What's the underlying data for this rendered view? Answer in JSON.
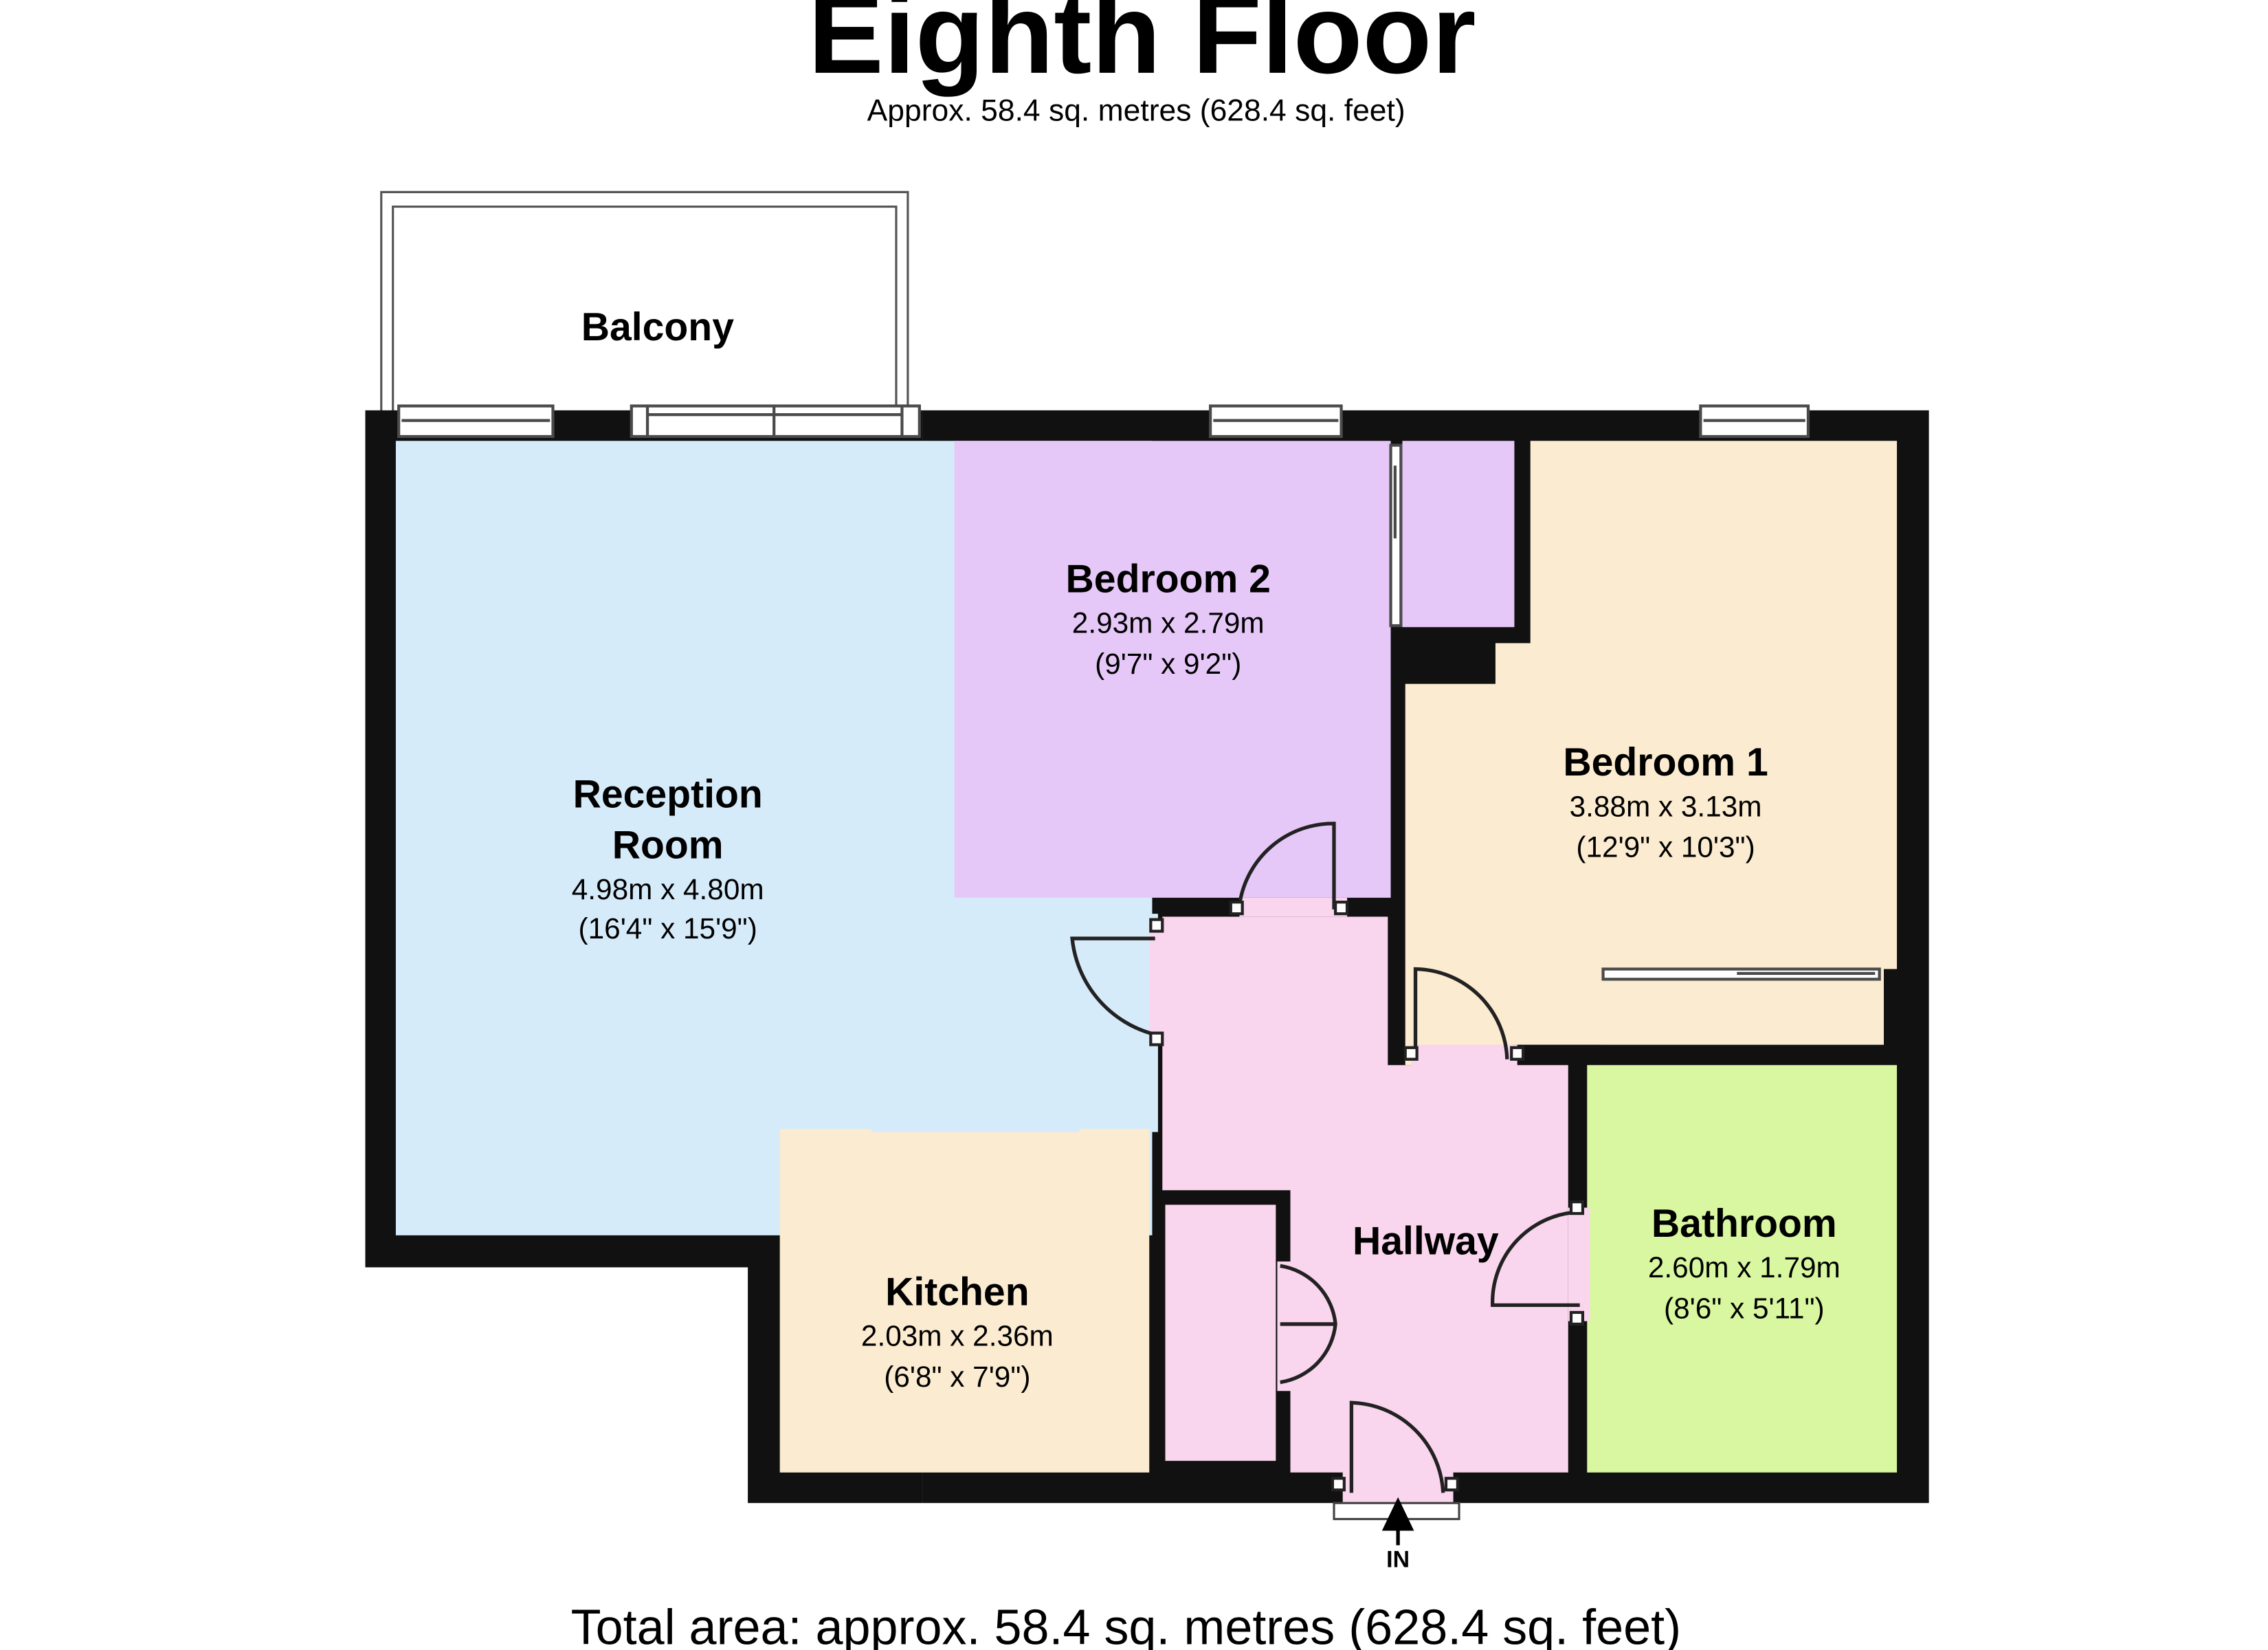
{
  "plan": {
    "floor_title": "Eighth Floor",
    "floor_area": "Approx.  58.4 sq. metres (628.4 sq. feet)",
    "total_area": "Total area: approx.  58.4 sq. metres (628.4 sq. feet)",
    "entrance_label": "IN"
  },
  "rooms": {
    "balcony": {
      "name": "Balcony"
    },
    "reception": {
      "name_line1": "Reception",
      "name_line2": "Room",
      "dims_m": "4.98m x 4.80m",
      "dims_ft": "(16'4\" x 15'9\")"
    },
    "bedroom2": {
      "name": "Bedroom 2",
      "dims_m": "2.93m x 2.79m",
      "dims_ft": "(9'7\" x 9'2\")"
    },
    "bedroom1": {
      "name": "Bedroom 1",
      "dims_m": "3.88m x 3.13m",
      "dims_ft": "(12'9\" x 10'3\")"
    },
    "kitchen": {
      "name": "Kitchen",
      "dims_m": "2.03m x 2.36m",
      "dims_ft": "(6'8\" x 7'9\")"
    },
    "hallway": {
      "name": "Hallway"
    },
    "bathroom": {
      "name": "Bathroom",
      "dims_m": "2.60m x 1.79m",
      "dims_ft": "(8'6\" x 5'11\")"
    }
  },
  "colors": {
    "wall": "#111111",
    "reception": "#d6ebfa",
    "bedroom2": "#e6c8f8",
    "bedroom1": "#fbebd0",
    "kitchen": "#fbebd0",
    "hallway": "#fad5ee",
    "bathroom": "#d8f7a0",
    "balcony": "#ffffff"
  }
}
